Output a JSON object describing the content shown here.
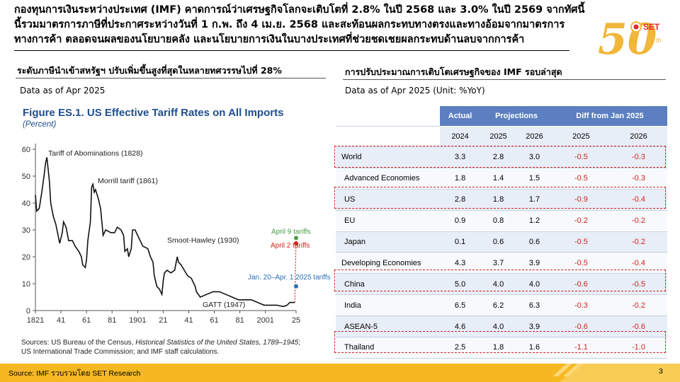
{
  "headline": "กองทุนการเงินระหว่างประเทศ (IMF) คาดการณ์ว่าเศรษฐกิจโลกจะเติบโตที่ 2.8% ในปี 2568 และ 3.0% ในปี 2569 จากทัศนี้นี้รวมมาตรการภาษีที่ประกาศระหว่างวันที่ 1 ก.พ. ถึง 4 เม.ย. 2568 และสะท้อนผลกระทบทางตรงและทางอ้อมจากมาตรการทางการค้า ตลอดจนผลของนโยบายคลัง และนโยบายการเงินในบางประเทศที่ช่วยชดเชยผลกระทบด้านลบจากการค้า",
  "logo": {
    "text_set": "SET",
    "text_50": "50",
    "text_th": "th"
  },
  "left": {
    "title": "ระดับภาษีนำเข้าสหรัฐฯ ปรับเพิ่มขึ้นสูงที่สุดในหลายทศวรรษไปที่ 28%",
    "asof": "Data as of Apr 2025",
    "figure": {
      "title": "Figure ES.1.  US Effective Tariff Rates on All Imports",
      "subtitle": "(Percent)",
      "source_prefix": "Sources: US Bureau of the Census, ",
      "source_italic": "Historical Statistics of the United States, 1789–1945",
      "source_suffix": "; US International Trade Commission; and IMF staff calculations."
    }
  },
  "chart_data": {
    "type": "line",
    "title": "Figure ES.1.  US Effective Tariff Rates on All Imports",
    "ylabel": "(Percent)",
    "xlim": [
      1821,
      2025
    ],
    "ylim": [
      0,
      60
    ],
    "yticks": [
      0,
      10,
      20,
      30,
      40,
      50,
      60
    ],
    "xtick_labels": [
      "1821",
      "41",
      "61",
      "81",
      "1901",
      "21",
      "41",
      "61",
      "81",
      "2001",
      "25"
    ],
    "xtick_years": [
      1821,
      1841,
      1861,
      1881,
      1901,
      1921,
      1941,
      1961,
      1981,
      2001,
      2025
    ],
    "grid": false,
    "series": [
      {
        "color": "#111111",
        "x": [
          1821,
          1822,
          1824,
          1826,
          1828,
          1829,
          1830,
          1832,
          1833,
          1835,
          1837,
          1840,
          1842,
          1843,
          1845,
          1847,
          1850,
          1852,
          1855,
          1857,
          1858,
          1860,
          1861,
          1862,
          1864,
          1865,
          1866,
          1867,
          1868,
          1870,
          1872,
          1874,
          1876,
          1880,
          1883,
          1885,
          1888,
          1890,
          1891,
          1893,
          1894,
          1896,
          1897,
          1899,
          1901,
          1905,
          1909,
          1911,
          1913,
          1914,
          1916,
          1918,
          1920,
          1921,
          1922,
          1924,
          1927,
          1930,
          1932,
          1933,
          1935,
          1940,
          1943,
          1946,
          1947,
          1950,
          1955,
          1960,
          1965,
          1970,
          1975,
          1980,
          1985,
          1990,
          1995,
          2000,
          2005,
          2010,
          2015,
          2018,
          2020,
          2024
        ],
        "y": [
          43,
          37,
          38,
          44,
          51,
          55,
          57,
          48,
          40,
          35,
          32,
          25,
          29,
          33,
          31,
          26,
          26,
          24,
          22,
          20,
          17,
          16,
          19,
          26,
          33,
          46,
          47,
          44,
          45,
          42,
          38,
          28,
          30,
          29,
          29,
          31,
          30,
          28,
          22,
          23,
          20,
          23,
          30,
          30,
          28,
          24,
          23,
          20,
          18,
          13,
          9,
          8,
          6,
          11,
          14,
          15,
          14,
          15,
          20,
          18,
          17,
          13,
          12,
          9,
          7,
          5,
          6,
          7,
          7,
          6,
          5,
          4,
          4,
          4,
          3,
          2,
          2,
          2,
          1.5,
          2,
          3,
          3
        ]
      }
    ],
    "markers": [
      {
        "label": "April 9 tariffs",
        "x": 2025,
        "y": 27,
        "color": "#4a9a4a"
      },
      {
        "label": "April 2 tariffs",
        "x": 2025,
        "y": 25,
        "color": "#d6211c"
      },
      {
        "label": "Jan. 20–Apr. 1 2025 tariffs",
        "x": 2025,
        "y": 9,
        "color": "#2a6fb8"
      }
    ],
    "annotations": [
      {
        "text": "Tariff of Abominations (1828)"
      },
      {
        "text": "Morrill tariff (1861)"
      },
      {
        "text": "Smoot-Hawley (1930)"
      },
      {
        "text": "GATT (1947)"
      }
    ]
  },
  "right": {
    "title": "การปรับประมาณการเติบโตเศรษฐกิจของ IMF รอบล่าสุด",
    "asof": "Data as of Apr 2025 (Unit: %YoY)",
    "table": {
      "group_headers": [
        "Actual",
        "Projections",
        "Diff from Jan 2025"
      ],
      "years": [
        "2024",
        "2025",
        "2026",
        "2025",
        "2026"
      ],
      "rows": [
        {
          "name": "World",
          "actual": "3.3",
          "p25": "2.8",
          "p26": "3.0",
          "d25": "-0.5",
          "d26": "-0.3"
        },
        {
          "name": "Advanced Economies",
          "actual": "1.8",
          "p25": "1.4",
          "p26": "1.5",
          "d25": "-0.5",
          "d26": "-0.3"
        },
        {
          "name": "US",
          "actual": "2.8",
          "p25": "1.8",
          "p26": "1.7",
          "d25": "-0.9",
          "d26": "-0.4"
        },
        {
          "name": "EU",
          "actual": "0.9",
          "p25": "0.8",
          "p26": "1.2",
          "d25": "-0.2",
          "d26": "-0.2"
        },
        {
          "name": "Japan",
          "actual": "0.1",
          "p25": "0.6",
          "p26": "0.6",
          "d25": "-0.5",
          "d26": "-0.2"
        },
        {
          "name": "Developing Economies",
          "actual": "4.3",
          "p25": "3.7",
          "p26": "3.9",
          "d25": "-0.5",
          "d26": "-0.4"
        },
        {
          "name": "China",
          "actual": "5.0",
          "p25": "4.0",
          "p26": "4.0",
          "d25": "-0.6",
          "d26": "-0.5"
        },
        {
          "name": "India",
          "actual": "6.5",
          "p25": "6.2",
          "p26": "6.3",
          "d25": "-0.3",
          "d26": "-0.2"
        },
        {
          "name": "ASEAN-5",
          "actual": "4.6",
          "p25": "4.0",
          "p26": "3.9",
          "d25": "-0.6",
          "d26": "-0.6"
        },
        {
          "name": "Thailand",
          "actual": "2.5",
          "p25": "1.8",
          "p26": "1.6",
          "d25": "-1.1",
          "d26": "-1.0"
        }
      ]
    }
  },
  "footer": {
    "source": "Source: IMF รวบรวมโดย SET Research",
    "page": "3"
  }
}
